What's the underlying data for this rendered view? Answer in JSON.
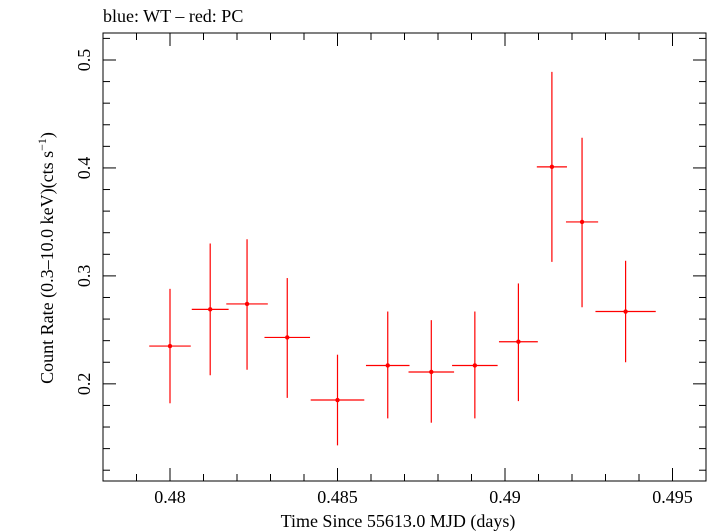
{
  "chart_data": {
    "type": "scatter",
    "title": "blue: WT – red: PC",
    "xlabel": "Time Since 55613.0 MJD (days)",
    "ylabel": "Count Rate (0.3–10.0 keV)(cts s",
    "ylabel_unit_sup": "−1",
    "ylabel_close": ")",
    "xlim": [
      0.478,
      0.496
    ],
    "ylim": [
      0.11,
      0.525
    ],
    "x_ticks_major": [
      0.48,
      0.485,
      0.49,
      0.495
    ],
    "x_tick_labels": [
      "0.48",
      "0.485",
      "0.49",
      "0.495"
    ],
    "y_ticks_major": [
      0.2,
      0.3,
      0.4,
      0.5
    ],
    "y_tick_labels": [
      "0.2",
      "0.3",
      "0.4",
      "0.5"
    ],
    "series": [
      {
        "color": "#ff0000",
        "points": [
          {
            "x": 0.48,
            "xerr": 0.00062,
            "y": 0.235,
            "ylo": 0.182,
            "yhi": 0.288
          },
          {
            "x": 0.4812,
            "xerr": 0.00055,
            "y": 0.269,
            "ylo": 0.208,
            "yhi": 0.33
          },
          {
            "x": 0.4823,
            "xerr": 0.00062,
            "y": 0.274,
            "ylo": 0.213,
            "yhi": 0.334
          },
          {
            "x": 0.4835,
            "xerr": 0.00068,
            "y": 0.243,
            "ylo": 0.187,
            "yhi": 0.298
          },
          {
            "x": 0.485,
            "xerr": 0.0008,
            "y": 0.185,
            "ylo": 0.143,
            "yhi": 0.227
          },
          {
            "x": 0.4865,
            "xerr": 0.00065,
            "y": 0.217,
            "ylo": 0.168,
            "yhi": 0.267
          },
          {
            "x": 0.4878,
            "xerr": 0.00068,
            "y": 0.211,
            "ylo": 0.164,
            "yhi": 0.259
          },
          {
            "x": 0.4891,
            "xerr": 0.00068,
            "y": 0.217,
            "ylo": 0.168,
            "yhi": 0.267
          },
          {
            "x": 0.4904,
            "xerr": 0.00058,
            "y": 0.239,
            "ylo": 0.184,
            "yhi": 0.293
          },
          {
            "x": 0.4914,
            "xerr": 0.00045,
            "y": 0.401,
            "ylo": 0.313,
            "yhi": 0.489
          },
          {
            "x": 0.4923,
            "xerr": 0.00048,
            "y": 0.35,
            "ylo": 0.271,
            "yhi": 0.428
          },
          {
            "x": 0.4936,
            "xerr": 0.0009,
            "y": 0.267,
            "ylo": 0.22,
            "yhi": 0.314
          }
        ]
      }
    ],
    "grid": false
  }
}
